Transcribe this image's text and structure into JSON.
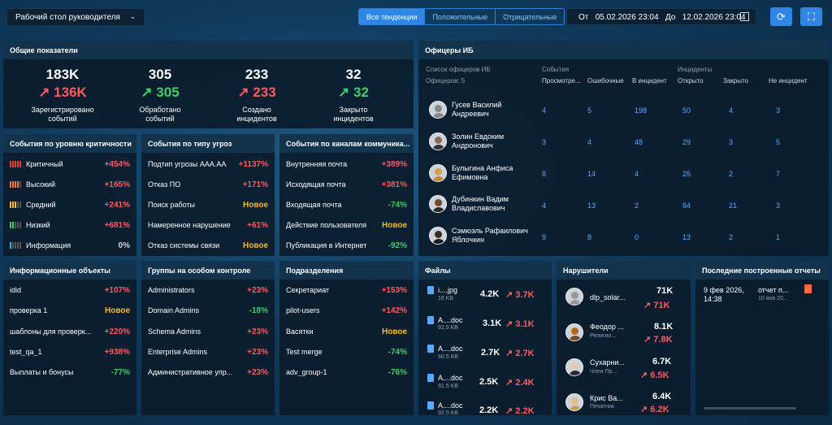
{
  "header": {
    "workspace": "Рабочий стол руководителя",
    "tabs": [
      "Все тенденции",
      "Положительные",
      "Отрицательные"
    ],
    "from_label": "От",
    "from": "05.02.2026 23:04",
    "to_label": "До",
    "to": "12.02.2026 23:04"
  },
  "kpi": {
    "title": "Общие показатели",
    "items": [
      {
        "value": "183K",
        "delta": "136K",
        "caption1": "Зарегистрировано",
        "caption2": "событий"
      },
      {
        "value": "305",
        "delta": "305",
        "caption1": "Обработано",
        "caption2": "событий"
      },
      {
        "value": "233",
        "delta": "233",
        "caption1": "Создано",
        "caption2": "инцидентов"
      },
      {
        "value": "32",
        "delta": "32",
        "caption1": "Закрыто",
        "caption2": "инцидентов"
      }
    ]
  },
  "criticality": {
    "title": "События по уровню критичности",
    "rows": [
      {
        "label": "Критичный",
        "value": "+454%"
      },
      {
        "label": "Высокий",
        "value": "+165%"
      },
      {
        "label": "Средний",
        "value": "+241%"
      },
      {
        "label": "Низкий",
        "value": "+681%"
      },
      {
        "label": "Информация",
        "value": "0%"
      }
    ]
  },
  "threats": {
    "title": "События по типу угроз",
    "rows": [
      {
        "label": "Подтип угрозы AAA.AA",
        "value": "+1137%"
      },
      {
        "label": "Отказ ПО",
        "value": "+171%"
      },
      {
        "label": "Поиск работы",
        "value": "Новое"
      },
      {
        "label": "Намеренное нарушение",
        "value": "+61%"
      },
      {
        "label": "Отказ системы связи",
        "value": "Новое"
      }
    ]
  },
  "channels": {
    "title": "События по каналам коммуника...",
    "rows": [
      {
        "label": "Внутренняя почта",
        "value": "+389%"
      },
      {
        "label": "Исходящая почта",
        "value": "+381%"
      },
      {
        "label": "Входящая почта",
        "value": "-74%"
      },
      {
        "label": "Действие пользователя",
        "value": "Новое"
      },
      {
        "label": "Публикация в Интернет",
        "value": "-92%"
      }
    ]
  },
  "officers": {
    "title": "Офицеры ИБ",
    "list_label": "Список офицеров ИБ",
    "count_label": "Офицеров: 5",
    "events_label": "События",
    "incidents_label": "Инциденты",
    "cols": [
      "Просмотре...",
      "Ошибочные",
      "В инцидент",
      "Открыто",
      "Закрыто",
      "Не инцидент"
    ],
    "rows": [
      {
        "name1": "Гусев Василий",
        "name2": "Андреевич",
        "v": [
          "4",
          "5",
          "198",
          "50",
          "4",
          "3"
        ]
      },
      {
        "name1": "Золин Евдоким",
        "name2": "Андронович",
        "v": [
          "3",
          "4",
          "48",
          "29",
          "3",
          "5"
        ]
      },
      {
        "name1": "Булыгина Анфиса",
        "name2": "Ефимовна",
        "v": [
          "8",
          "14",
          "4",
          "25",
          "2",
          "7"
        ]
      },
      {
        "name1": "Дубинкин Вадим",
        "name2": "Владиславович",
        "v": [
          "4",
          "13",
          "2",
          "84",
          "21",
          "3"
        ]
      },
      {
        "name1": "Сэмюэль Рафаилович",
        "name2": "Яблочкин",
        "v": [
          "9",
          "8",
          "0",
          "13",
          "2",
          "1"
        ]
      }
    ]
  },
  "info_objects": {
    "title": "Информационные объекты",
    "rows": [
      {
        "label": "idid",
        "value": "+107%"
      },
      {
        "label": "проверка 1",
        "value": "Новое"
      },
      {
        "label": "шаблоны для проверк...",
        "value": "+220%"
      },
      {
        "label": "test_qa_1",
        "value": "+938%"
      },
      {
        "label": "Выплаты и бонусы",
        "value": "-77%"
      }
    ]
  },
  "groups": {
    "title": "Группы на особом контроле",
    "rows": [
      {
        "label": "Administrators",
        "value": "+23%"
      },
      {
        "label": "Domain Admins",
        "value": "-18%"
      },
      {
        "label": "Schema Admins",
        "value": "+23%"
      },
      {
        "label": "Enterprise Admins",
        "value": "+23%"
      },
      {
        "label": "Административное упр...",
        "value": "+23%"
      }
    ]
  },
  "departments": {
    "title": "Подразделения",
    "rows": [
      {
        "label": "Секретариат",
        "value": "+153%"
      },
      {
        "label": "pilot-users",
        "value": "+142%"
      },
      {
        "label": "Васятки",
        "value": "Новое"
      },
      {
        "label": "Test merge",
        "value": "-74%"
      },
      {
        "label": "adv_group-1",
        "value": "-76%"
      }
    ]
  },
  "files": {
    "title": "Файлы",
    "rows": [
      {
        "name": "i....jpg",
        "size": "16 KB",
        "value": "4.2K",
        "delta": "3.7K"
      },
      {
        "name": "A....doc",
        "size": "92.5 KB",
        "value": "3.1K",
        "delta": "3.1K"
      },
      {
        "name": "A....doc",
        "size": "90.5 KB",
        "value": "2.7K",
        "delta": "2.7K"
      },
      {
        "name": "A....doc",
        "size": "91.5 KB",
        "value": "2.5K",
        "delta": "2.4K"
      },
      {
        "name": "A....doc",
        "size": "92.5 KB",
        "value": "2.2K",
        "delta": "2.2K"
      }
    ]
  },
  "violators": {
    "title": "Нарушители",
    "rows": [
      {
        "name": "dlp_solar...",
        "sub": "",
        "value": "71K",
        "delta": "71K"
      },
      {
        "name": "Феодор ...",
        "sub": "Религио...",
        "value": "8.1K",
        "delta": "7.8K"
      },
      {
        "name": "Сухарни...",
        "sub": "Член Пр...",
        "value": "6.7K",
        "delta": "6.5K"
      },
      {
        "name": "Крис Ва...",
        "sub": "Печатник",
        "value": "6.4K",
        "delta": "6.2K"
      }
    ]
  },
  "reports": {
    "title": "Последние построенные отчеты",
    "date1": "9 фев 2026,",
    "date2": "14:38",
    "name": "отчет п...",
    "sub": "10 янв 20..."
  }
}
